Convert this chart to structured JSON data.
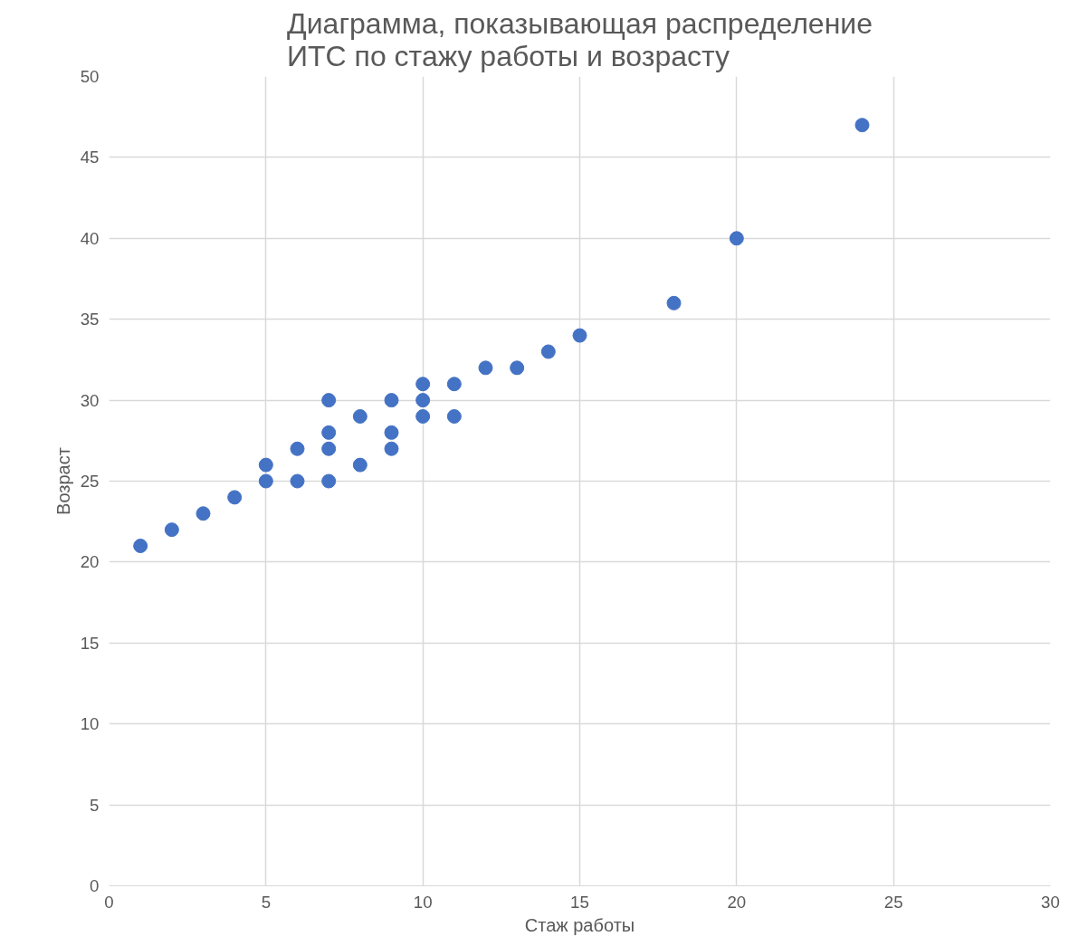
{
  "chart_data": {
    "type": "scatter",
    "title": "Диаграмма, показывающая распределение ИТС по стажу работы и возрасту",
    "xlabel": "Стаж работы",
    "ylabel": "Возраст",
    "x": [
      1,
      2,
      3,
      4,
      5,
      5,
      6,
      6,
      7,
      7,
      7,
      7,
      8,
      8,
      9,
      9,
      9,
      10,
      10,
      10,
      11,
      11,
      12,
      13,
      14,
      15,
      18,
      20,
      24
    ],
    "series": [
      {
        "color": "#4472c4",
        "values": [
          21,
          22,
          23,
          24,
          25,
          26,
          25,
          27,
          25,
          27,
          28,
          30,
          26,
          29,
          27,
          28,
          30,
          29,
          30,
          31,
          29,
          31,
          32,
          32,
          33,
          34,
          36,
          40,
          47
        ]
      }
    ],
    "xlim": [
      0,
      30
    ],
    "xticks": [
      0,
      5,
      10,
      15,
      20,
      25,
      30
    ],
    "ylim": [
      0,
      50
    ],
    "yticks": [
      0,
      5,
      10,
      15,
      20,
      25,
      30,
      35,
      40,
      45,
      50
    ],
    "grid": true,
    "marker": "circle"
  }
}
